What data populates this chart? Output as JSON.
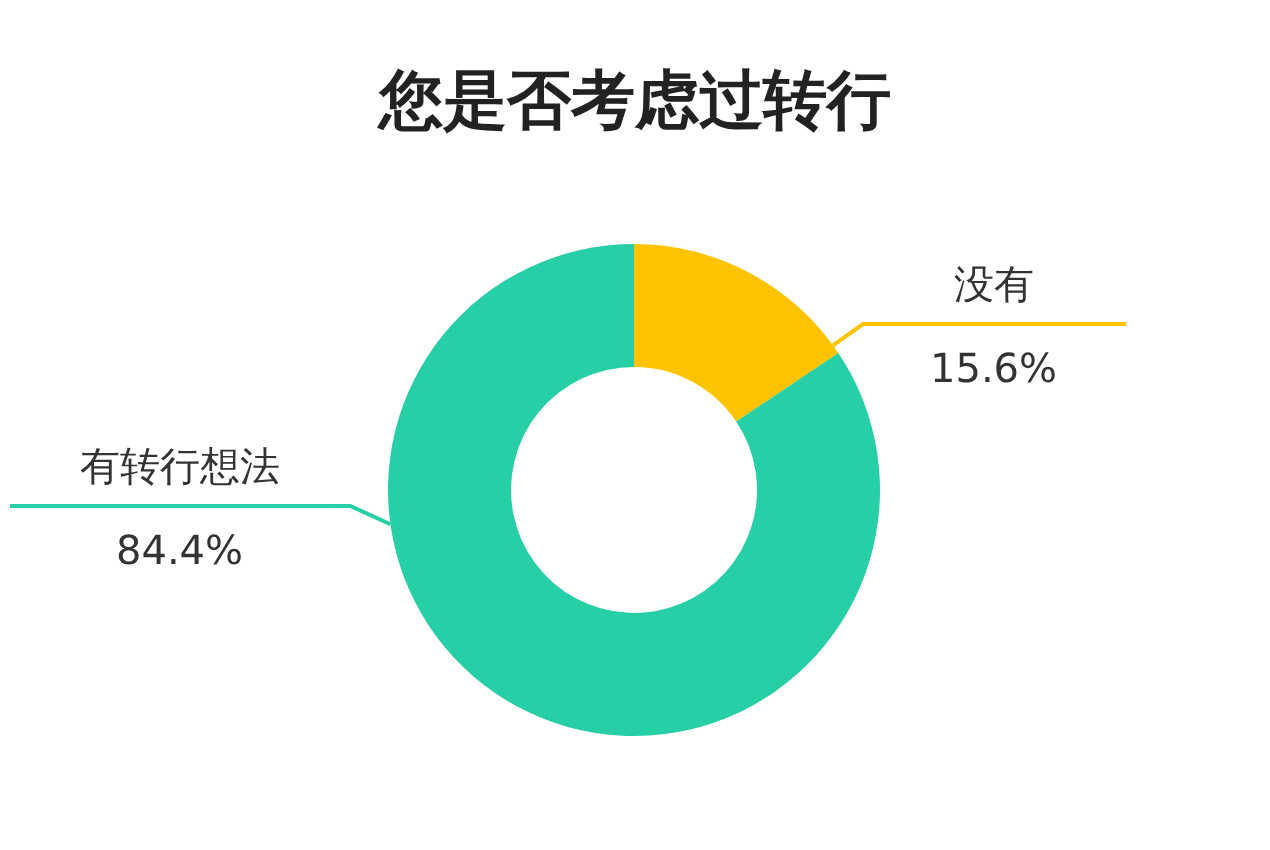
{
  "chart_data": {
    "type": "donut",
    "title": "您是否考虑过转行",
    "categories": [
      "没有",
      "有转行想法"
    ],
    "values": [
      15.6,
      84.4
    ],
    "value_labels": [
      "15.6%",
      "84.4%"
    ],
    "colors": [
      "#ffc300",
      "#26cfa5"
    ],
    "legend": false
  }
}
